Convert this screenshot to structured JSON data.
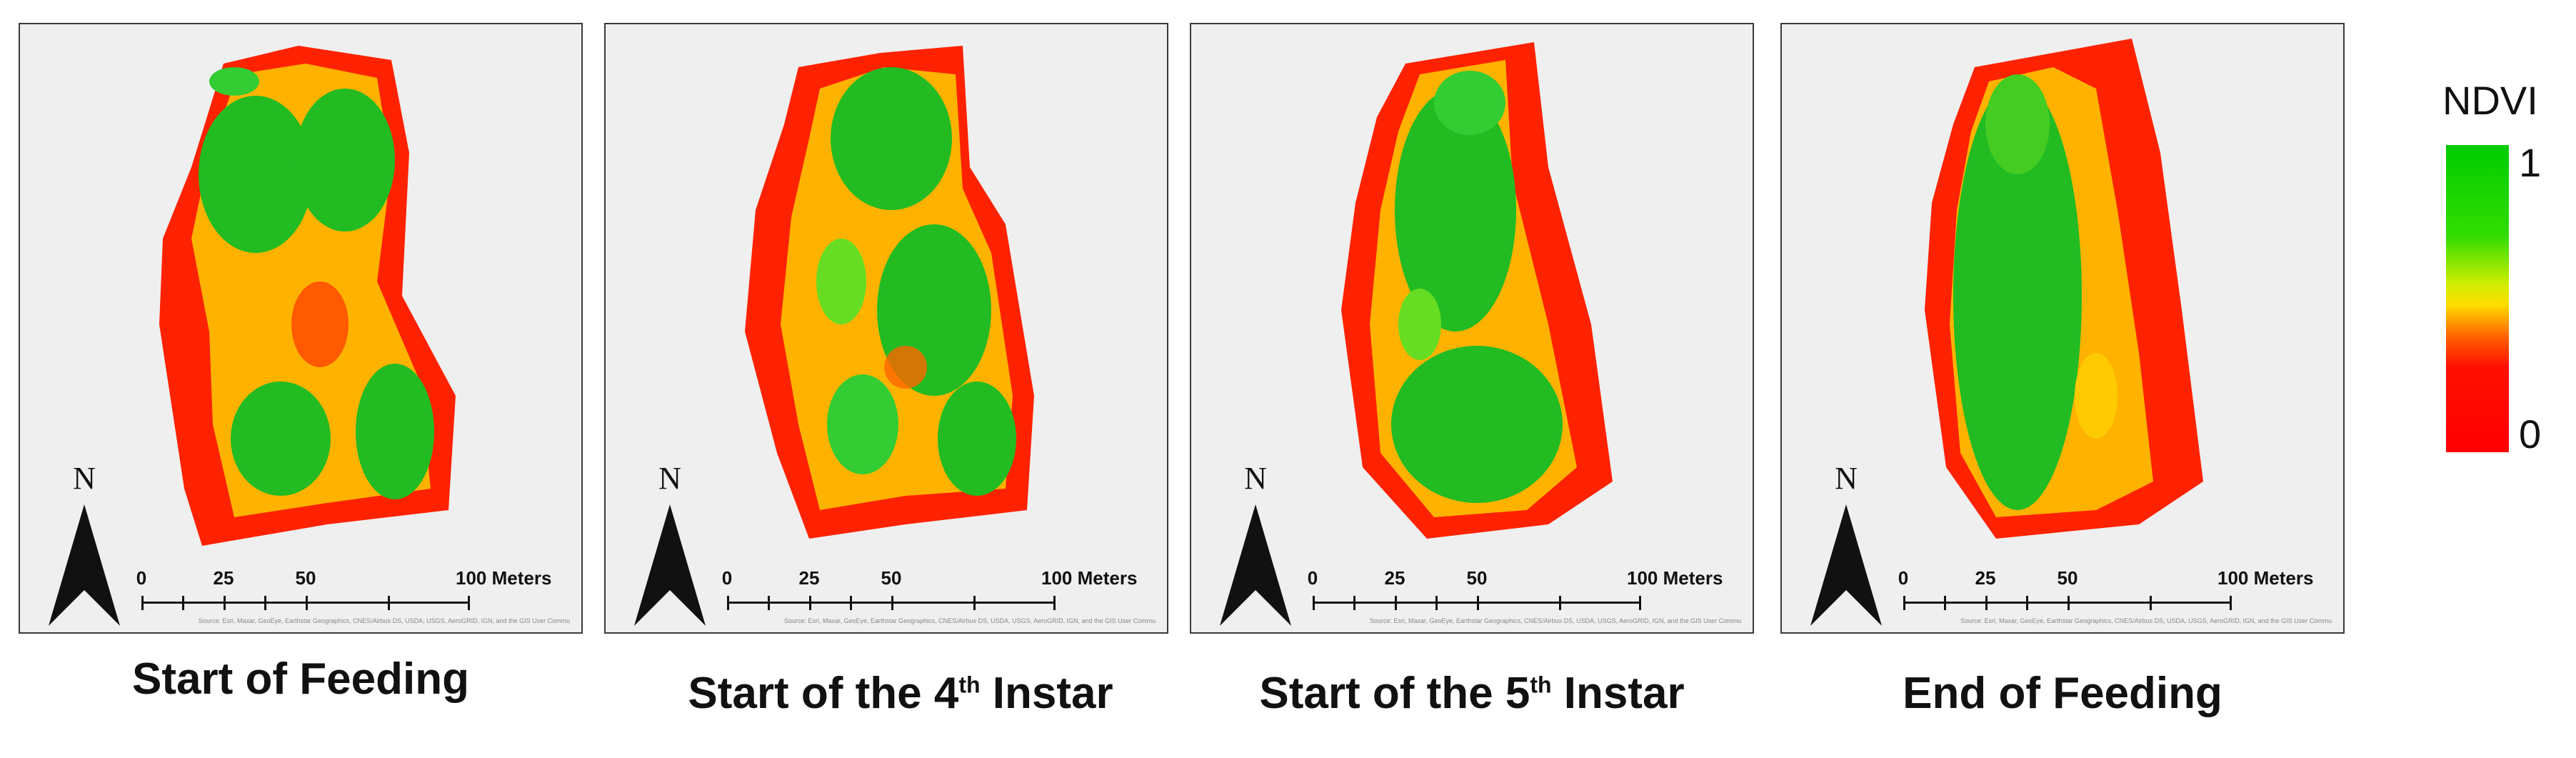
{
  "panels": [
    {
      "caption_pre": "Start of Feeding",
      "caption_sup": "",
      "caption_post": "",
      "north_label": "N",
      "scale": {
        "t0": "0",
        "t1": "25",
        "t2": "50",
        "t3": "100 Meters"
      },
      "credit": "Source: Esri, Maxar, GeoEye, Earthstar Geographics, CNES/Airbus DS, USDA, USGS, AeroGRID, IGN, and the GIS User Community"
    },
    {
      "caption_pre": "Start of the 4",
      "caption_sup": "th",
      "caption_post": " Instar",
      "north_label": "N",
      "scale": {
        "t0": "0",
        "t1": "25",
        "t2": "50",
        "t3": "100 Meters"
      },
      "credit": "Source: Esri, Maxar, GeoEye, Earthstar Geographics, CNES/Airbus DS, USDA, USGS, AeroGRID, IGN, and the GIS User Community"
    },
    {
      "caption_pre": "Start of the 5",
      "caption_sup": "th",
      "caption_post": " Instar",
      "north_label": "N",
      "scale": {
        "t0": "0",
        "t1": "25",
        "t2": "50",
        "t3": "100 Meters"
      },
      "credit": "Source: Esri, Maxar, GeoEye, Earthstar Geographics, CNES/Airbus DS, USDA, USGS, AeroGRID, IGN, and the GIS User Community"
    },
    {
      "caption_pre": "End of Feeding",
      "caption_sup": "",
      "caption_post": "",
      "north_label": "N",
      "scale": {
        "t0": "0",
        "t1": "25",
        "t2": "50",
        "t3": "100 Meters"
      },
      "credit": "Source: Esri, Maxar, GeoEye, Earthstar Geographics, CNES/Airbus DS, USDA, USGS, AeroGRID, IGN, and the GIS User Community"
    }
  ],
  "legend": {
    "title": "NDVI",
    "max": "1",
    "min": "0",
    "colors": {
      "high": "#00cc00",
      "mid": "#ffdd00",
      "low": "#ff0000"
    }
  }
}
